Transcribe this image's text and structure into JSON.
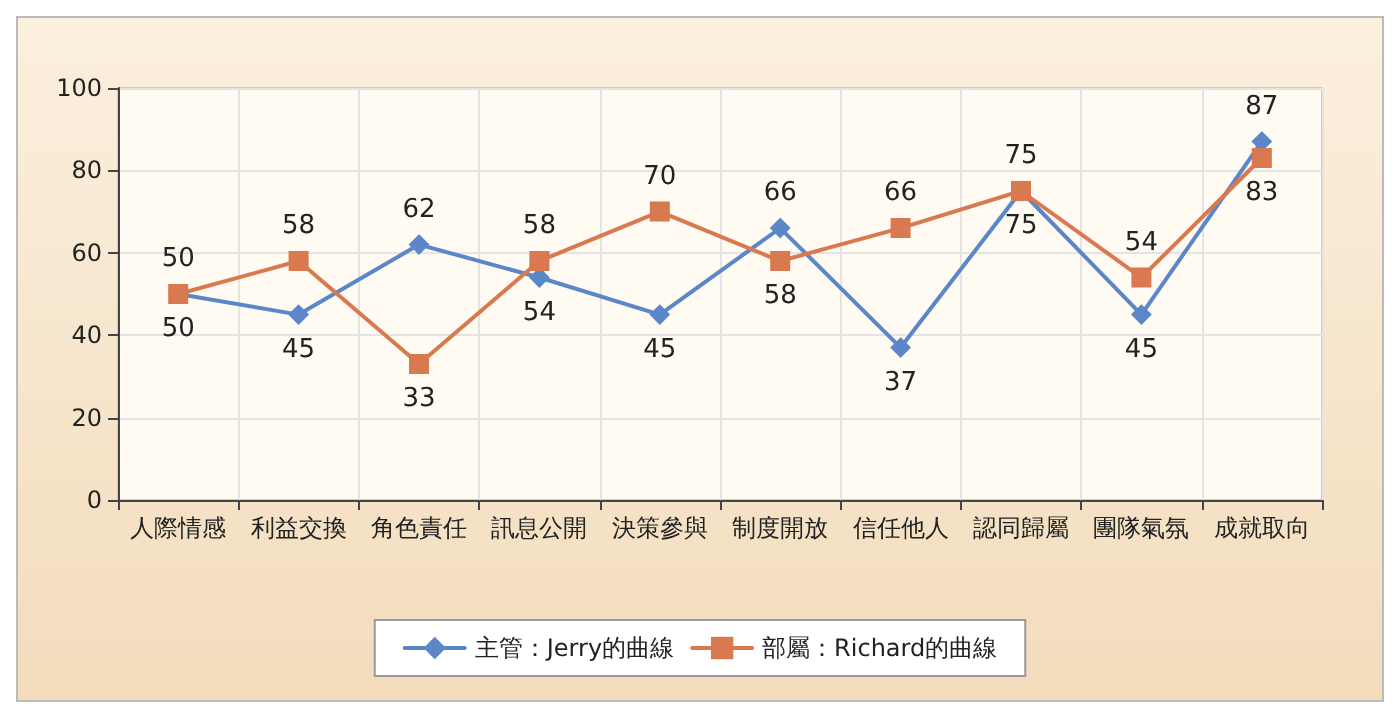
{
  "chart_data": {
    "type": "line",
    "categories": [
      "人際情感",
      "利益交換",
      "角色責任",
      "訊息公開",
      "決策參與",
      "制度開放",
      "信任他人",
      "認同歸屬",
      "團隊氣氛",
      "成就取向"
    ],
    "series": [
      {
        "name": "主管：Jerry的曲線",
        "color": "#5b87c9",
        "marker": "diamond",
        "values": [
          50,
          45,
          62,
          54,
          45,
          66,
          37,
          75,
          45,
          87
        ]
      },
      {
        "name": "部屬：Richard的曲線",
        "color": "#d9794f",
        "marker": "square",
        "values": [
          50,
          58,
          33,
          58,
          70,
          58,
          66,
          75,
          54,
          83
        ]
      }
    ],
    "ylim": [
      0,
      100
    ],
    "yticks": [
      0,
      20,
      40,
      60,
      80,
      100
    ],
    "grid": true,
    "legend": "bottom",
    "data_labels": true,
    "line_style": "solid"
  }
}
